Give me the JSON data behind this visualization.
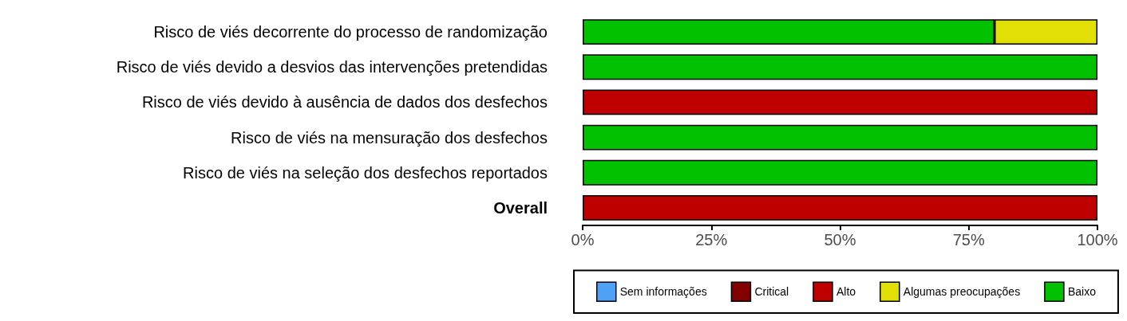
{
  "chart_data": {
    "type": "bar",
    "orientation": "horizontal",
    "stacked": true,
    "categories": [
      "Risco de viés decorrente do processo de randomização",
      "Risco de viés devido a desvios das intervenções pretendidas",
      "Risco de viés devido à ausência de dados dos desfechos",
      "Risco de viés na mensuração dos desfechos",
      "Risco de viés na seleção dos desfechos reportados",
      "Overall"
    ],
    "series": [
      {
        "name": "Baixo",
        "color": "#02c100",
        "values": [
          80,
          100,
          0,
          100,
          100,
          0
        ]
      },
      {
        "name": "Algumas preocupações",
        "color": "#e2df07",
        "values": [
          20,
          0,
          0,
          0,
          0,
          0
        ]
      },
      {
        "name": "Alto",
        "color": "#bf0000",
        "values": [
          0,
          0,
          100,
          0,
          0,
          100
        ]
      },
      {
        "name": "Critical",
        "color": "#820000",
        "values": [
          0,
          0,
          0,
          0,
          0,
          0
        ]
      },
      {
        "name": "Sem informações",
        "color": "#4ea1f7",
        "values": [
          0,
          0,
          0,
          0,
          0,
          0
        ]
      }
    ],
    "xlim": [
      0,
      100
    ],
    "xticks": [
      {
        "value": 0,
        "label": "0%"
      },
      {
        "value": 25,
        "label": "25%"
      },
      {
        "value": 50,
        "label": "50%"
      },
      {
        "value": 75,
        "label": "75%"
      },
      {
        "value": 100,
        "label": "100%"
      }
    ],
    "grid": false,
    "legend": "bottom"
  }
}
